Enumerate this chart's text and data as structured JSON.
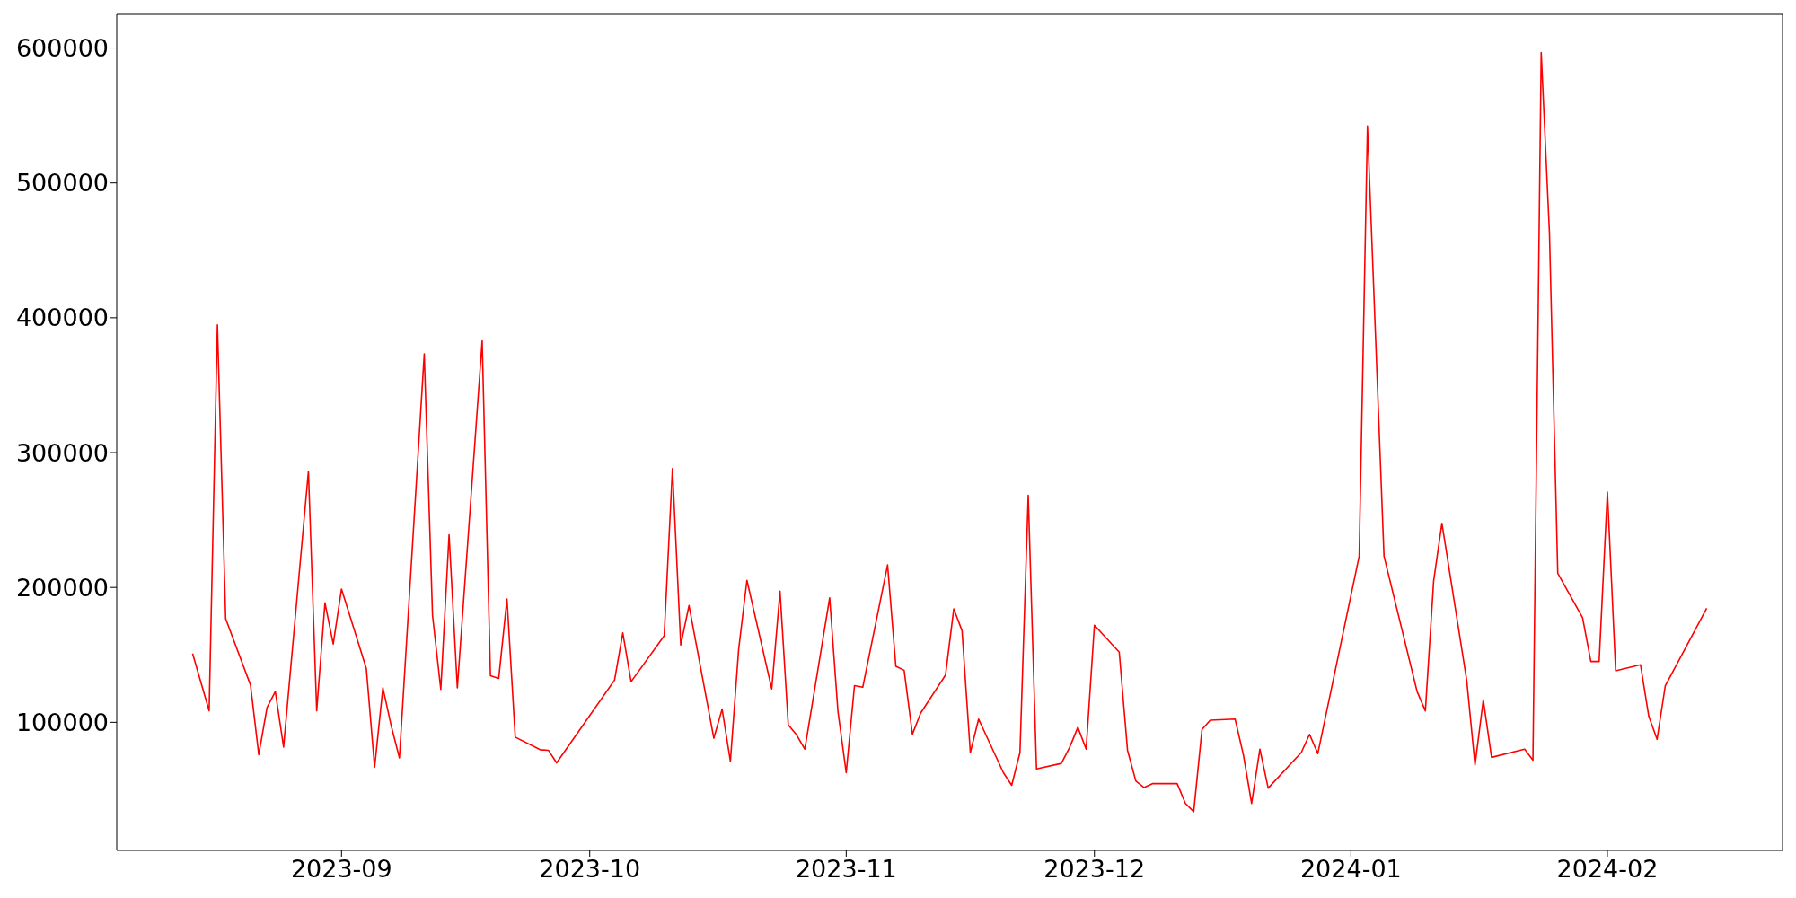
{
  "chart_data": {
    "type": "line",
    "x": [
      "2023-08-14",
      "2023-08-16",
      "2023-08-17",
      "2023-08-18",
      "2023-08-21",
      "2023-08-22",
      "2023-08-23",
      "2023-08-24",
      "2023-08-25",
      "2023-08-28",
      "2023-08-29",
      "2023-08-30",
      "2023-08-31",
      "2023-09-01",
      "2023-09-04",
      "2023-09-05",
      "2023-09-06",
      "2023-09-07",
      "2023-09-08",
      "2023-09-11",
      "2023-09-12",
      "2023-09-13",
      "2023-09-14",
      "2023-09-15",
      "2023-09-18",
      "2023-09-19",
      "2023-09-20",
      "2023-09-21",
      "2023-09-22",
      "2023-09-25",
      "2023-09-26",
      "2023-09-27",
      "2023-10-04",
      "2023-10-05",
      "2023-10-06",
      "2023-10-10",
      "2023-10-11",
      "2023-10-12",
      "2023-10-13",
      "2023-10-16",
      "2023-10-17",
      "2023-10-18",
      "2023-10-19",
      "2023-10-20",
      "2023-10-23",
      "2023-10-24",
      "2023-10-25",
      "2023-10-26",
      "2023-10-27",
      "2023-10-30",
      "2023-10-31",
      "2023-11-01",
      "2023-11-02",
      "2023-11-03",
      "2023-11-06",
      "2023-11-07",
      "2023-11-08",
      "2023-11-09",
      "2023-11-10",
      "2023-11-13",
      "2023-11-14",
      "2023-11-15",
      "2023-11-16",
      "2023-11-17",
      "2023-11-20",
      "2023-11-21",
      "2023-11-22",
      "2023-11-23",
      "2023-11-24",
      "2023-11-27",
      "2023-11-28",
      "2023-11-29",
      "2023-11-30",
      "2023-12-01",
      "2023-12-04",
      "2023-12-05",
      "2023-12-06",
      "2023-12-07",
      "2023-12-08",
      "2023-12-11",
      "2023-12-12",
      "2023-12-13",
      "2023-12-14",
      "2023-12-15",
      "2023-12-18",
      "2023-12-19",
      "2023-12-20",
      "2023-12-21",
      "2023-12-22",
      "2023-12-26",
      "2023-12-27",
      "2023-12-28",
      "2024-01-02",
      "2024-01-03",
      "2024-01-05",
      "2024-01-09",
      "2024-01-10",
      "2024-01-11",
      "2024-01-12",
      "2024-01-15",
      "2024-01-16",
      "2024-01-17",
      "2024-01-18",
      "2024-01-22",
      "2024-01-23",
      "2024-01-24",
      "2024-01-25",
      "2024-01-26",
      "2024-01-29",
      "2024-01-30",
      "2024-01-31",
      "2024-02-01",
      "2024-02-02",
      "2024-02-05",
      "2024-02-06",
      "2024-02-07",
      "2024-02-08",
      "2024-02-13"
    ],
    "series": [
      {
        "color": "#ff0000",
        "values": [
          151000,
          108500,
          394700,
          176800,
          127600,
          76000,
          111000,
          122800,
          81700,
          286200,
          108500,
          188600,
          158100,
          198800,
          139800,
          66700,
          125600,
          97600,
          73600,
          373200,
          179300,
          124400,
          239000,
          125600,
          382900,
          134600,
          132500,
          191500,
          89000,
          79700,
          79300,
          69900,
          131300,
          166300,
          130100,
          164200,
          288200,
          157300,
          186600,
          88200,
          109800,
          71100,
          154100,
          205300,
          124800,
          197200,
          98000,
          90700,
          80100,
          192300,
          108100,
          62600,
          127200,
          126000,
          216700,
          141500,
          138600,
          91100,
          106900,
          135000,
          184100,
          167900,
          77600,
          102400,
          62600,
          53300,
          77600,
          268300,
          65400,
          69500,
          81300,
          96300,
          80100,
          172000,
          152000,
          79300,
          56500,
          51600,
          54500,
          54500,
          39800,
          33700,
          94700,
          101600,
          102400,
          76000,
          39800,
          80100,
          51200,
          77600,
          91100,
          76800,
          223200,
          542300,
          223200,
          122800,
          108500,
          204900,
          247600,
          130900,
          68300,
          116700,
          74000,
          80100,
          72000,
          596700,
          462600,
          210600,
          177600,
          145100,
          145100,
          270700,
          138200,
          142700,
          104500,
          87400,
          127200,
          184600
        ]
      }
    ],
    "xlim": [
      "2023-08-04T20:00",
      "2024-02-22T04:00"
    ],
    "xticks": [
      {
        "value": "2023-09-01",
        "label": "2023-09"
      },
      {
        "value": "2023-10-01",
        "label": "2023-10"
      },
      {
        "value": "2023-11-01",
        "label": "2023-11"
      },
      {
        "value": "2023-12-01",
        "label": "2023-12"
      },
      {
        "value": "2024-01-01",
        "label": "2024-01"
      },
      {
        "value": "2024-02-01",
        "label": "2024-02"
      }
    ],
    "ylim": [
      5000,
      625000
    ],
    "yticks": [
      100000,
      200000,
      300000,
      400000,
      500000,
      600000
    ],
    "grid": false,
    "legend": false,
    "marker": "none",
    "line_style": "solid"
  }
}
